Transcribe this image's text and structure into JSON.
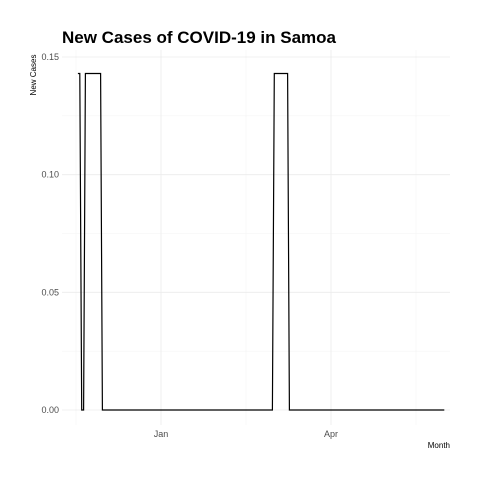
{
  "chart_data": {
    "type": "line",
    "title": "New Cases of COVID-19 in Samoa",
    "xlabel": "Month",
    "ylabel": "New Cases",
    "x_ticks": [
      "Jan",
      "Apr"
    ],
    "y_ticks": [
      "0.00",
      "0.05",
      "0.10",
      "0.15"
    ],
    "ylim": [
      0,
      0.15
    ],
    "grid": true,
    "series": [
      {
        "color": "#000000",
        "x": [
          "2020-11-18",
          "2020-11-19",
          "2020-11-20",
          "2020-11-21",
          "2020-11-22",
          "2020-11-23",
          "2020-11-24",
          "2020-11-25",
          "2020-11-26",
          "2020-11-27",
          "2020-11-28",
          "2020-11-29",
          "2020-11-30",
          "2020-12-01",
          "2021-03-01",
          "2021-03-02",
          "2021-03-03",
          "2021-03-04",
          "2021-03-05",
          "2021-03-06",
          "2021-03-07",
          "2021-03-08",
          "2021-03-09",
          "2021-03-10",
          "2021-05-31"
        ],
        "values": [
          0.143,
          0.143,
          0,
          0,
          0.143,
          0.143,
          0.143,
          0.143,
          0.143,
          0.143,
          0.143,
          0.143,
          0.143,
          0,
          0,
          0.143,
          0.143,
          0.143,
          0.143,
          0.143,
          0.143,
          0.143,
          0.143,
          0,
          0
        ]
      }
    ]
  }
}
